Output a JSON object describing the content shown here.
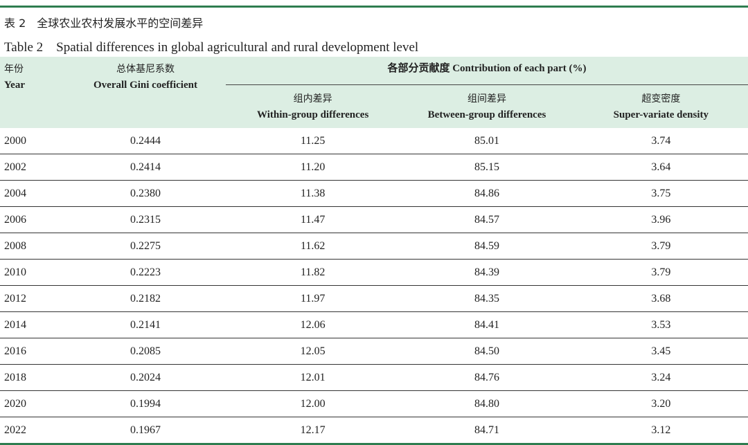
{
  "title_cn": "表 2　全球农业农村发展水平的空间差异",
  "title_en": "Table 2　Spatial differences in global agricultural and rural development level",
  "header": {
    "year_cn": "年份",
    "year_en": "Year",
    "gini_cn": "总体基尼系数",
    "gini_en": "Overall Gini coefficient",
    "contribution": "各部分贡献度 Contribution of each part (%)",
    "within_cn": "组内差异",
    "within_en": "Within-group differences",
    "between_cn": "组间差异",
    "between_en": "Between-group differences",
    "super_cn": "超变密度",
    "super_en": "Super-variate density"
  },
  "rows": [
    {
      "year": "2000",
      "gini": "0.2444",
      "within": "11.25",
      "between": "85.01",
      "super": "3.74"
    },
    {
      "year": "2002",
      "gini": "0.2414",
      "within": "11.20",
      "between": "85.15",
      "super": "3.64"
    },
    {
      "year": "2004",
      "gini": "0.2380",
      "within": "11.38",
      "between": "84.86",
      "super": "3.75"
    },
    {
      "year": "2006",
      "gini": "0.2315",
      "within": "11.47",
      "between": "84.57",
      "super": "3.96"
    },
    {
      "year": "2008",
      "gini": "0.2275",
      "within": "11.62",
      "between": "84.59",
      "super": "3.79"
    },
    {
      "year": "2010",
      "gini": "0.2223",
      "within": "11.82",
      "between": "84.39",
      "super": "3.79"
    },
    {
      "year": "2012",
      "gini": "0.2182",
      "within": "11.97",
      "between": "84.35",
      "super": "3.68"
    },
    {
      "year": "2014",
      "gini": "0.2141",
      "within": "12.06",
      "between": "84.41",
      "super": "3.53"
    },
    {
      "year": "2016",
      "gini": "0.2085",
      "within": "12.05",
      "between": "84.50",
      "super": "3.45"
    },
    {
      "year": "2018",
      "gini": "0.2024",
      "within": "12.01",
      "between": "84.76",
      "super": "3.24"
    },
    {
      "year": "2020",
      "gini": "0.1994",
      "within": "12.00",
      "between": "84.80",
      "super": "3.20"
    },
    {
      "year": "2022",
      "gini": "0.1967",
      "within": "12.17",
      "between": "84.71",
      "super": "3.12"
    }
  ],
  "colors": {
    "rule": "#2e7d4f",
    "header_bg": "#dceee3"
  }
}
